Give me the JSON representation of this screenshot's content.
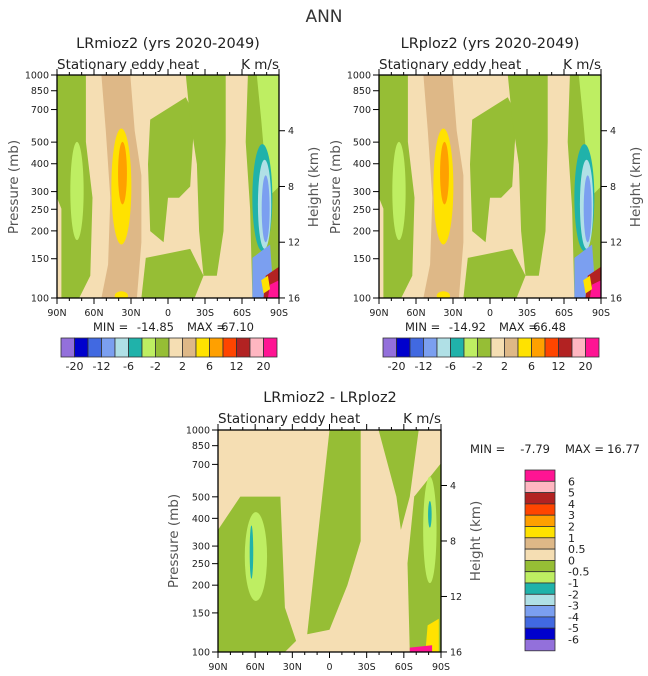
{
  "figure": {
    "title": "ANN",
    "colors": {
      "-20": "#9370DB",
      "-16": "#0000CD",
      "-12": "#4169E1",
      "-8": "#7B9FF0",
      "-6": "#B0E0E6",
      "-4": "#20B2AA",
      "-2": "#BEEE62",
      "-1": "#96BE35",
      "0": "#F5DEB3",
      "2": "#DEB887",
      "4": "#FFE200",
      "6": "#FFA000",
      "8": "#FF4500",
      "12": "#B22222",
      "16": "#FFB6C1",
      "20": "#FF1493"
    }
  },
  "chart_data": [
    {
      "type": "heatmap",
      "title": "LRmioz2 (yrs 2020-2049)",
      "subtitle_left": "Stationary eddy heat",
      "subtitle_right": "K m/s",
      "ylabel": "Pressure (mb)",
      "ylabel_right": "Height (km)",
      "xticks": [
        "90N",
        "60N",
        "30N",
        "0",
        "30S",
        "60S",
        "90S"
      ],
      "yticks": [
        "100",
        "150",
        "200",
        "250",
        "300",
        "400",
        "500",
        "700",
        "850",
        "1000"
      ],
      "yticks_right": [
        "16",
        "12",
        "8",
        "4"
      ],
      "ylim": [
        1000,
        100
      ],
      "stats": {
        "min_label": "MIN =",
        "min": "-14.85",
        "max_label": "MAX =",
        "max": "67.10"
      },
      "colorbar": {
        "orientation": "horizontal",
        "labels": [
          "-20",
          "-12",
          "-6",
          "-2",
          "2",
          "6",
          "12",
          "20"
        ],
        "levels": [
          -20,
          -16,
          -12,
          -8,
          -6,
          -4,
          -2,
          -1,
          0,
          2,
          4,
          6,
          8,
          12,
          16,
          20
        ]
      }
    },
    {
      "type": "heatmap",
      "title": "LRploz2 (yrs 2020-2049)",
      "subtitle_left": "Stationary eddy heat",
      "subtitle_right": "K m/s",
      "ylabel": "Pressure (mb)",
      "ylabel_right": "Height (km)",
      "xticks": [
        "90N",
        "60N",
        "30N",
        "0",
        "30S",
        "60S",
        "90S"
      ],
      "yticks": [
        "100",
        "150",
        "200",
        "250",
        "300",
        "400",
        "500",
        "700",
        "850",
        "1000"
      ],
      "yticks_right": [
        "16",
        "12",
        "8",
        "4"
      ],
      "ylim": [
        1000,
        100
      ],
      "stats": {
        "min_label": "MIN =",
        "min": "-14.92",
        "max_label": "MAX =",
        "max": "66.48"
      },
      "colorbar": {
        "orientation": "horizontal",
        "labels": [
          "-20",
          "-12",
          "-6",
          "-2",
          "2",
          "6",
          "12",
          "20"
        ],
        "levels": [
          -20,
          -16,
          -12,
          -8,
          -6,
          -4,
          -2,
          -1,
          0,
          2,
          4,
          6,
          8,
          12,
          16,
          20
        ]
      }
    },
    {
      "type": "heatmap",
      "title": "LRmioz2 - LRploz2",
      "subtitle_left": "Stationary eddy heat",
      "subtitle_right": "K m/s",
      "ylabel": "Pressure (mb)",
      "ylabel_right": "Height (km)",
      "xticks": [
        "90N",
        "60N",
        "30N",
        "0",
        "30S",
        "60S",
        "90S"
      ],
      "yticks": [
        "100",
        "150",
        "200",
        "250",
        "300",
        "400",
        "500",
        "700",
        "850",
        "1000"
      ],
      "yticks_right": [
        "16",
        "12",
        "8",
        "4"
      ],
      "ylim": [
        1000,
        100
      ],
      "stats": {
        "min_label": "MIN =",
        "min": "-7.79",
        "max_label": "MAX =",
        "max": "16.77"
      },
      "colorbar": {
        "orientation": "vertical",
        "labels": [
          "6",
          "5",
          "4",
          "3",
          "2",
          "1",
          "0.5",
          "0",
          "-0.5",
          "-1",
          "-2",
          "-3",
          "-4",
          "-5",
          "-6"
        ],
        "box_colors": [
          "#FF1493",
          "#FFB6C1",
          "#B22222",
          "#FF4500",
          "#FFA000",
          "#FFE200",
          "#DEB887",
          "#F5DEB3",
          "#96BE35",
          "#BEEE62",
          "#20B2AA",
          "#B0E0E6",
          "#7B9FF0",
          "#4169E1",
          "#0000CD",
          "#9370DB"
        ]
      }
    }
  ]
}
